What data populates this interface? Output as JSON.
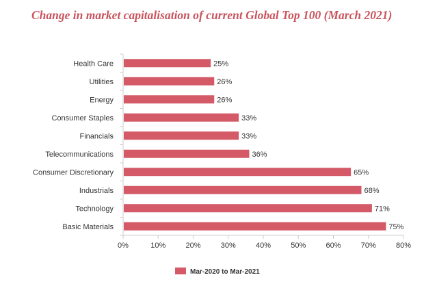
{
  "chart_data": {
    "type": "bar",
    "orientation": "horizontal",
    "title": "Change in market capitalisation of current Global Top 100 (March 2021)",
    "categories": [
      "Health Care",
      "Utilities",
      "Energy",
      "Consumer Staples",
      "Financials",
      "Telecommunications",
      "Consumer Discretionary",
      "Industrials",
      "Technology",
      "Basic Materials"
    ],
    "series": [
      {
        "name": "Mar-2020 to Mar-2021",
        "values": [
          25,
          26,
          26,
          33,
          33,
          36,
          65,
          68,
          71,
          75
        ],
        "value_labels": [
          "25%",
          "26%",
          "26%",
          "33%",
          "33%",
          "36%",
          "65%",
          "68%",
          "71%",
          "75%"
        ]
      }
    ],
    "xlim": [
      0,
      80
    ],
    "xticks": [
      0,
      10,
      20,
      30,
      40,
      50,
      60,
      70,
      80
    ],
    "xtick_labels": [
      "0%",
      "10%",
      "20%",
      "30%",
      "40%",
      "50%",
      "60%",
      "70%",
      "80%"
    ],
    "grid": false,
    "legend_position": "bottom",
    "colors": {
      "bar": "#d45a68",
      "title": "#c9545e",
      "axis": "#cccccc"
    }
  }
}
